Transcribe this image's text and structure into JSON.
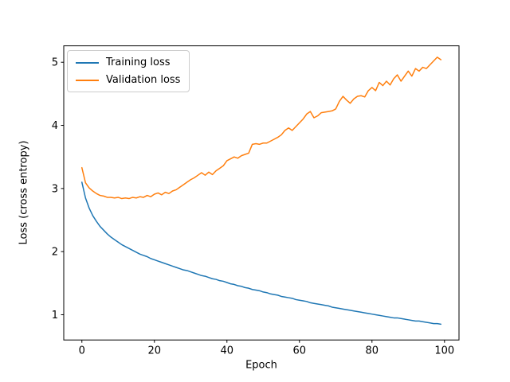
{
  "chart_data": {
    "type": "line",
    "title": "",
    "xlabel": "Epoch",
    "ylabel": "Loss (cross entropy)",
    "xlim": [
      -5,
      104
    ],
    "ylim": [
      0.6,
      5.26
    ],
    "xticks": [
      0,
      20,
      40,
      60,
      80,
      100
    ],
    "yticks": [
      1,
      2,
      3,
      4,
      5
    ],
    "grid": false,
    "legend_position": "upper-left",
    "background_color": "#ffffff",
    "spine_color": "#000000",
    "x": [
      0,
      1,
      2,
      3,
      4,
      5,
      6,
      7,
      8,
      9,
      10,
      11,
      12,
      13,
      14,
      15,
      16,
      17,
      18,
      19,
      20,
      21,
      22,
      23,
      24,
      25,
      26,
      27,
      28,
      29,
      30,
      31,
      32,
      33,
      34,
      35,
      36,
      37,
      38,
      39,
      40,
      41,
      42,
      43,
      44,
      45,
      46,
      47,
      48,
      49,
      50,
      51,
      52,
      53,
      54,
      55,
      56,
      57,
      58,
      59,
      60,
      61,
      62,
      63,
      64,
      65,
      66,
      67,
      68,
      69,
      70,
      71,
      72,
      73,
      74,
      75,
      76,
      77,
      78,
      79,
      80,
      81,
      82,
      83,
      84,
      85,
      86,
      87,
      88,
      89,
      90,
      91,
      92,
      93,
      94,
      95,
      96,
      97,
      98,
      99
    ],
    "series": [
      {
        "name": "Training loss",
        "color": "#1f77b4",
        "values": [
          3.1,
          2.85,
          2.69,
          2.57,
          2.48,
          2.4,
          2.34,
          2.28,
          2.23,
          2.19,
          2.15,
          2.11,
          2.08,
          2.05,
          2.02,
          1.99,
          1.96,
          1.94,
          1.92,
          1.89,
          1.87,
          1.85,
          1.83,
          1.81,
          1.79,
          1.77,
          1.75,
          1.73,
          1.71,
          1.7,
          1.68,
          1.66,
          1.64,
          1.62,
          1.61,
          1.59,
          1.57,
          1.56,
          1.54,
          1.53,
          1.51,
          1.49,
          1.48,
          1.46,
          1.45,
          1.43,
          1.42,
          1.4,
          1.39,
          1.38,
          1.36,
          1.35,
          1.33,
          1.32,
          1.31,
          1.29,
          1.28,
          1.27,
          1.26,
          1.24,
          1.23,
          1.22,
          1.21,
          1.19,
          1.18,
          1.17,
          1.16,
          1.15,
          1.14,
          1.12,
          1.11,
          1.1,
          1.09,
          1.08,
          1.07,
          1.06,
          1.05,
          1.04,
          1.03,
          1.02,
          1.01,
          1.0,
          0.99,
          0.98,
          0.97,
          0.96,
          0.95,
          0.95,
          0.94,
          0.93,
          0.92,
          0.91,
          0.9,
          0.9,
          0.89,
          0.88,
          0.87,
          0.86,
          0.86,
          0.85
        ]
      },
      {
        "name": "Validation loss",
        "color": "#ff7f0e",
        "values": [
          3.33,
          3.09,
          3.01,
          2.96,
          2.92,
          2.89,
          2.88,
          2.86,
          2.86,
          2.85,
          2.86,
          2.84,
          2.85,
          2.84,
          2.86,
          2.85,
          2.87,
          2.86,
          2.89,
          2.87,
          2.91,
          2.93,
          2.9,
          2.94,
          2.92,
          2.96,
          2.98,
          3.02,
          3.06,
          3.1,
          3.14,
          3.17,
          3.21,
          3.25,
          3.21,
          3.26,
          3.22,
          3.28,
          3.32,
          3.36,
          3.44,
          3.47,
          3.5,
          3.48,
          3.52,
          3.54,
          3.56,
          3.7,
          3.71,
          3.7,
          3.72,
          3.72,
          3.75,
          3.78,
          3.81,
          3.85,
          3.92,
          3.96,
          3.92,
          3.98,
          4.04,
          4.1,
          4.18,
          4.22,
          4.12,
          4.15,
          4.2,
          4.21,
          4.22,
          4.23,
          4.26,
          4.38,
          4.46,
          4.4,
          4.35,
          4.42,
          4.46,
          4.47,
          4.45,
          4.55,
          4.6,
          4.55,
          4.68,
          4.63,
          4.7,
          4.64,
          4.74,
          4.8,
          4.7,
          4.78,
          4.86,
          4.78,
          4.9,
          4.86,
          4.92,
          4.9,
          4.96,
          5.02,
          5.08,
          5.04
        ]
      }
    ]
  }
}
